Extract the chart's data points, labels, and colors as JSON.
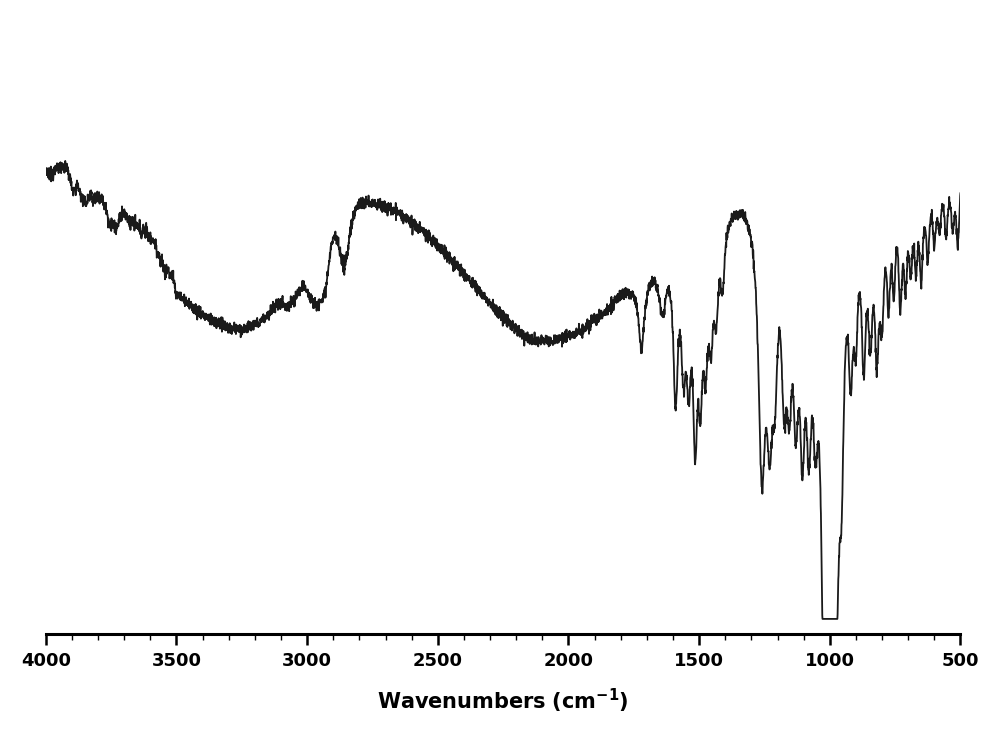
{
  "xlabel": "Wavenumbers (cm⁻¹)",
  "xmin": 4000,
  "xmax": 500,
  "xticks": [
    4000,
    3500,
    3000,
    2500,
    2000,
    1500,
    1000,
    500
  ],
  "ymin": -0.05,
  "ymax": 1.15,
  "line_color": "#1a1a1a",
  "line_width": 1.3,
  "background_color": "#ffffff",
  "xlabel_fontsize": 15,
  "tick_fontsize": 13
}
